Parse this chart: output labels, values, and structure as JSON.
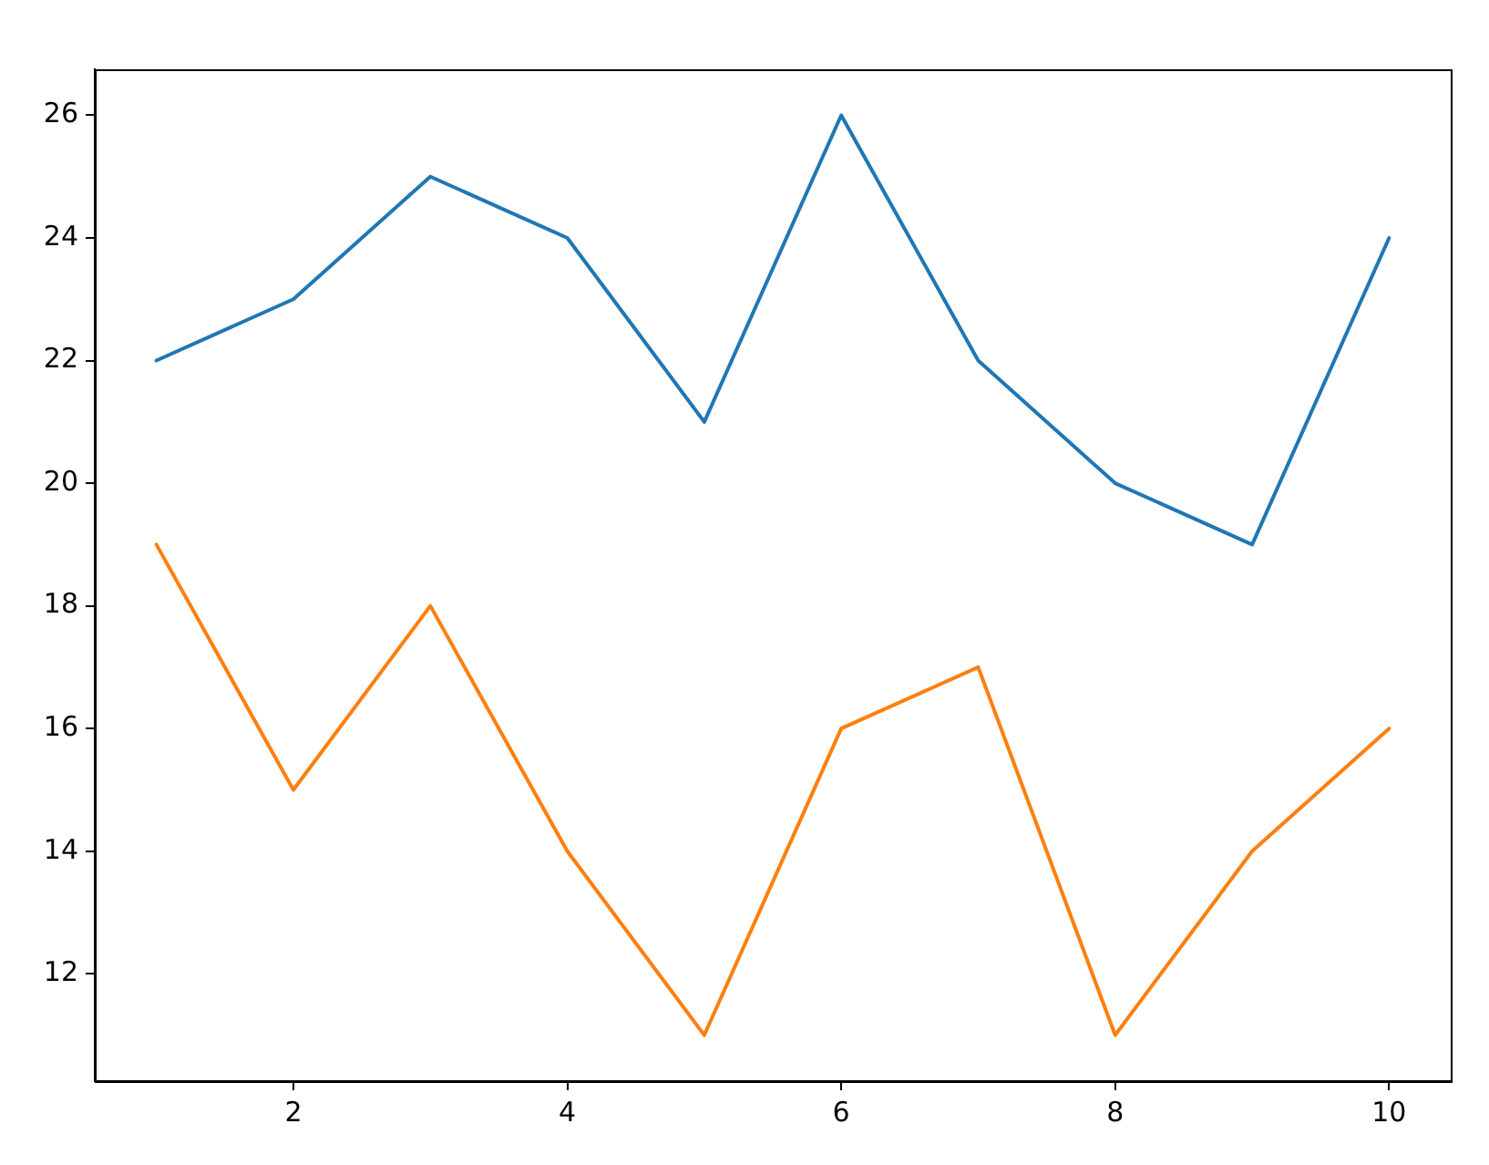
{
  "chart_data": {
    "type": "line",
    "x": [
      1,
      2,
      3,
      4,
      5,
      6,
      7,
      8,
      9,
      10
    ],
    "series": [
      {
        "color": "#1f77b4",
        "values": [
          22,
          23,
          25,
          24,
          21,
          26,
          22,
          20,
          19,
          24
        ]
      },
      {
        "color": "#ff7f0e",
        "values": [
          19,
          15,
          18,
          14,
          11,
          16,
          17,
          11,
          14,
          16
        ]
      }
    ],
    "xlim": [
      0.55,
      10.45
    ],
    "xticks": [
      2,
      4,
      6,
      8,
      10
    ],
    "ylim": [
      10.25,
      26.75
    ],
    "yticks": [
      12,
      14,
      16,
      18,
      20,
      22,
      24,
      26
    ],
    "grid": false,
    "legend": false,
    "marker": "none",
    "line_style": "solid"
  }
}
